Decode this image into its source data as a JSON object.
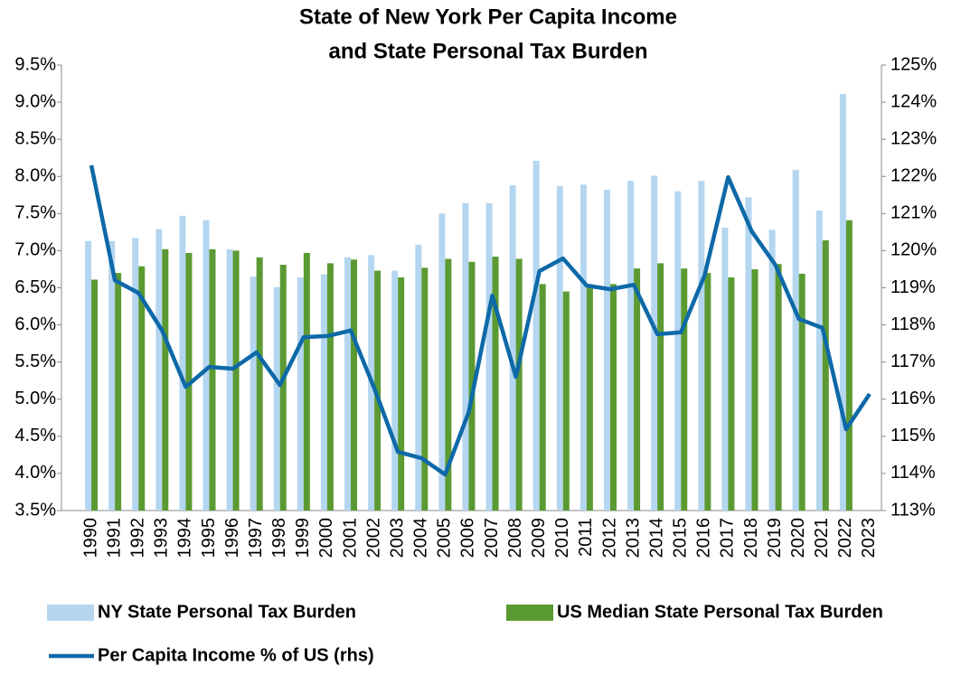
{
  "chart_data": {
    "type": "bar",
    "title": [
      "State of New York Per Capita Income",
      "and State Personal Tax Burden"
    ],
    "categories": [
      "1990",
      "1991",
      "1992",
      "1993",
      "1994",
      "1995",
      "1996",
      "1997",
      "1998",
      "1999",
      "2000",
      "2001",
      "2002",
      "2003",
      "2004",
      "2005",
      "2006",
      "2007",
      "2008",
      "2009",
      "2010",
      "2011",
      "2012",
      "2013",
      "2014",
      "2015",
      "2016",
      "2017",
      "2018",
      "2019",
      "2020",
      "2021",
      "2022",
      "2023"
    ],
    "series": [
      {
        "name": "NY State Personal Tax Burden",
        "color": "#b4d6f0",
        "values": [
          7.13,
          7.13,
          7.17,
          7.29,
          7.47,
          7.41,
          7.02,
          6.65,
          6.51,
          6.64,
          6.68,
          6.91,
          6.94,
          6.73,
          7.08,
          7.5,
          7.64,
          7.64,
          7.88,
          8.21,
          7.87,
          7.89,
          7.82,
          7.94,
          8.01,
          7.8,
          7.94,
          7.31,
          7.72,
          7.28,
          8.09,
          7.54,
          9.11,
          null
        ]
      },
      {
        "name": "US Median State Personal Tax Burden",
        "color": "#5b9a32",
        "values": [
          6.61,
          6.7,
          6.79,
          7.02,
          6.97,
          7.02,
          7.0,
          6.91,
          6.81,
          6.97,
          6.83,
          6.88,
          6.73,
          6.64,
          6.77,
          6.89,
          6.85,
          6.92,
          6.89,
          6.55,
          6.45,
          6.55,
          6.55,
          6.76,
          6.83,
          6.76,
          6.7,
          6.64,
          6.75,
          6.82,
          6.69,
          7.14,
          7.41,
          null
        ]
      },
      {
        "name": "Per Capita Income % of US (rhs)",
        "color": "#0e69a8",
        "type": "line",
        "axis": "y2",
        "values": [
          122.3,
          119.2,
          118.86,
          117.85,
          116.33,
          116.87,
          116.82,
          117.26,
          116.38,
          117.67,
          117.7,
          117.85,
          116.29,
          114.58,
          114.41,
          113.97,
          115.65,
          118.79,
          116.6,
          119.45,
          119.79,
          119.06,
          118.96,
          119.08,
          117.75,
          117.8,
          119.33,
          121.98,
          120.52,
          119.62,
          118.16,
          117.92,
          115.19,
          116.14
        ]
      }
    ],
    "ylim": [
      3.5,
      9.5
    ],
    "yticks": [
      {
        "value": 3.5,
        "label": "3.5%"
      },
      {
        "value": 4.0,
        "label": "4.0%"
      },
      {
        "value": 4.5,
        "label": "4.5%"
      },
      {
        "value": 5.0,
        "label": "5.0%"
      },
      {
        "value": 5.5,
        "label": "5.5%"
      },
      {
        "value": 6.0,
        "label": "6.0%"
      },
      {
        "value": 6.5,
        "label": "6.5%"
      },
      {
        "value": 7.0,
        "label": "7.0%"
      },
      {
        "value": 7.5,
        "label": "7.5%"
      },
      {
        "value": 8.0,
        "label": "8.0%"
      },
      {
        "value": 8.5,
        "label": "8.5%"
      },
      {
        "value": 9.0,
        "label": "9.0%"
      },
      {
        "value": 9.5,
        "label": "9.5%"
      }
    ],
    "y2lim": [
      113,
      125
    ],
    "y2ticks": [
      {
        "value": 113,
        "label": "113%"
      },
      {
        "value": 114,
        "label": "114%"
      },
      {
        "value": 115,
        "label": "115%"
      },
      {
        "value": 116,
        "label": "116%"
      },
      {
        "value": 117,
        "label": "117%"
      },
      {
        "value": 118,
        "label": "118%"
      },
      {
        "value": 119,
        "label": "119%"
      },
      {
        "value": 120,
        "label": "120%"
      },
      {
        "value": 121,
        "label": "121%"
      },
      {
        "value": 122,
        "label": "122%"
      },
      {
        "value": 123,
        "label": "123%"
      },
      {
        "value": 124,
        "label": "124%"
      },
      {
        "value": 125,
        "label": "125%"
      }
    ],
    "grid": false
  }
}
